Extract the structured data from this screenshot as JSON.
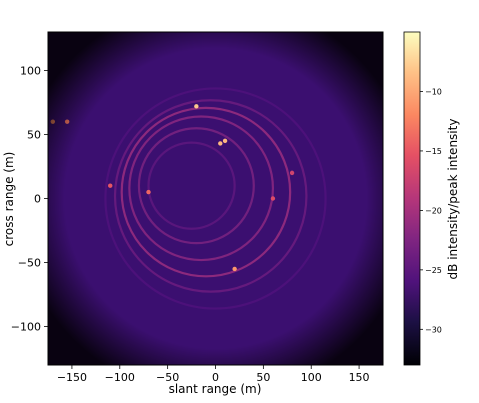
{
  "chart_data": {
    "type": "heatmap",
    "title": "",
    "xlabel": "slant range (m)",
    "ylabel": "cross range (m)",
    "colorbar_label": "dB intensity/peak intensity",
    "colormap": "magma",
    "xlim": [
      -175,
      175
    ],
    "ylim": [
      -130,
      130
    ],
    "clim": [
      -33,
      -5
    ],
    "x_ticks": [
      -150,
      -100,
      -50,
      0,
      50,
      100,
      150
    ],
    "x_tick_labels": [
      "−150",
      "−100",
      "−50",
      "0",
      "50",
      "100",
      "150"
    ],
    "y_ticks": [
      100,
      50,
      0,
      -50,
      -100
    ],
    "y_tick_labels": [
      "100",
      "50",
      "0",
      "−50",
      "−100"
    ],
    "colorbar_ticks": [
      -10,
      -15,
      -20,
      -25,
      -30
    ],
    "colorbar_tick_labels": [
      "−10",
      "−15",
      "−20",
      "−25",
      "−30"
    ],
    "grid": false,
    "features": {
      "rings": [
        {
          "cx": 0,
          "cy": 0,
          "r": 115,
          "level": -26
        },
        {
          "cx": -5,
          "cy": 2,
          "r": 100,
          "level": -24
        },
        {
          "cx": -10,
          "cy": 5,
          "r": 88,
          "level": -21
        },
        {
          "cx": -15,
          "cy": 8,
          "r": 75,
          "level": -22
        },
        {
          "cx": -20,
          "cy": 10,
          "r": 60,
          "level": -23
        },
        {
          "cx": -25,
          "cy": 10,
          "r": 45,
          "level": -25
        }
      ],
      "bright_spots": [
        {
          "x": -170,
          "y": 60,
          "level": -12
        },
        {
          "x": -155,
          "y": 60,
          "level": -13
        },
        {
          "x": -20,
          "y": 72,
          "level": -8
        },
        {
          "x": 5,
          "y": 43,
          "level": -9
        },
        {
          "x": 10,
          "y": 45,
          "level": -9
        },
        {
          "x": 20,
          "y": -55,
          "level": -11
        },
        {
          "x": -70,
          "y": 5,
          "level": -14
        },
        {
          "x": -110,
          "y": 10,
          "level": -15
        },
        {
          "x": 60,
          "y": 0,
          "level": -16
        },
        {
          "x": 80,
          "y": 20,
          "level": -17
        }
      ]
    }
  }
}
